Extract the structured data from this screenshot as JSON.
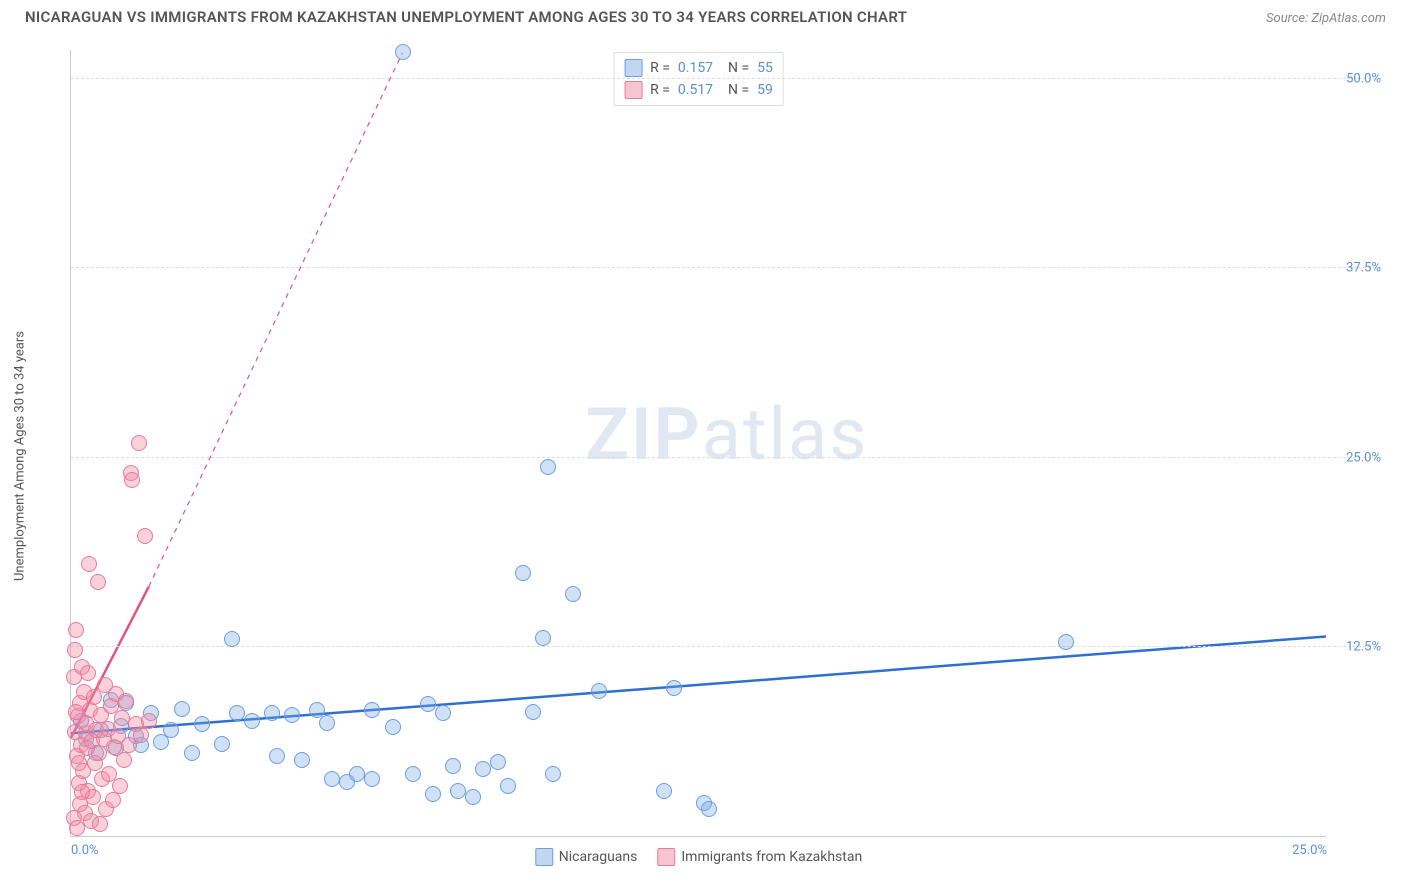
{
  "title": "NICARAGUAN VS IMMIGRANTS FROM KAZAKHSTAN UNEMPLOYMENT AMONG AGES 30 TO 34 YEARS CORRELATION CHART",
  "source": "Source: ZipAtlas.com",
  "ylabel": "Unemployment Among Ages 30 to 34 years",
  "watermark": "ZIPatlas",
  "chart": {
    "type": "scatter",
    "xlim": [
      0,
      25
    ],
    "ylim": [
      0,
      52
    ],
    "xticks": [
      {
        "v": 0,
        "label": "0.0%"
      },
      {
        "v": 25,
        "label": "25.0%"
      }
    ],
    "yticks": [
      {
        "v": 12.5,
        "label": "12.5%"
      },
      {
        "v": 25.0,
        "label": "25.0%"
      },
      {
        "v": 37.5,
        "label": "37.5%"
      },
      {
        "v": 50.0,
        "label": "50.0%"
      }
    ],
    "grid_color": "#dddddd",
    "background_color": "#ffffff",
    "marker_radius": 8,
    "marker_stroke_width": 1.5,
    "series": [
      {
        "name": "Nicaraguans",
        "fill": "rgba(120,165,225,0.35)",
        "stroke": "#6a9fe0",
        "trend": {
          "x1": 0,
          "y1": 6.8,
          "x2": 25,
          "y2": 13.2,
          "color": "#2f6fd0",
          "width": 2.5,
          "dash": "none",
          "extend_dash_to": null
        },
        "R": "0.157",
        "N": "55",
        "points": [
          [
            0.3,
            6.4
          ],
          [
            0.6,
            7.0
          ],
          [
            1.0,
            7.3
          ],
          [
            1.3,
            6.6
          ],
          [
            1.6,
            8.1
          ],
          [
            2.0,
            7.0
          ],
          [
            2.2,
            8.4
          ],
          [
            2.6,
            7.4
          ],
          [
            3.0,
            6.1
          ],
          [
            3.2,
            13.0
          ],
          [
            3.3,
            8.1
          ],
          [
            3.6,
            7.6
          ],
          [
            4.0,
            8.1
          ],
          [
            4.1,
            5.3
          ],
          [
            4.4,
            8.0
          ],
          [
            4.6,
            5.0
          ],
          [
            4.9,
            8.3
          ],
          [
            5.1,
            7.5
          ],
          [
            5.2,
            3.8
          ],
          [
            5.5,
            3.6
          ],
          [
            5.7,
            4.1
          ],
          [
            6.0,
            3.8
          ],
          [
            6.0,
            8.3
          ],
          [
            6.4,
            7.2
          ],
          [
            6.6,
            51.8
          ],
          [
            6.8,
            4.1
          ],
          [
            7.1,
            8.7
          ],
          [
            7.2,
            2.8
          ],
          [
            7.4,
            8.1
          ],
          [
            7.6,
            4.6
          ],
          [
            7.7,
            3.0
          ],
          [
            8.0,
            2.6
          ],
          [
            8.2,
            4.4
          ],
          [
            8.5,
            4.9
          ],
          [
            8.7,
            3.3
          ],
          [
            9.0,
            17.4
          ],
          [
            9.2,
            8.2
          ],
          [
            9.4,
            13.1
          ],
          [
            9.5,
            24.4
          ],
          [
            9.6,
            4.1
          ],
          [
            10.0,
            16.0
          ],
          [
            10.5,
            9.6
          ],
          [
            11.8,
            3.0
          ],
          [
            12.0,
            9.8
          ],
          [
            12.6,
            2.2
          ],
          [
            12.7,
            1.8
          ],
          [
            19.8,
            12.8
          ],
          [
            1.8,
            6.2
          ],
          [
            2.4,
            5.5
          ],
          [
            0.9,
            5.8
          ],
          [
            1.1,
            8.8
          ],
          [
            0.5,
            5.5
          ],
          [
            0.2,
            7.6
          ],
          [
            0.8,
            9.0
          ],
          [
            1.4,
            6.0
          ]
        ]
      },
      {
        "name": "Immigrants from Kazakhstan",
        "fill": "rgba(240,140,165,0.40)",
        "stroke": "#e77a9a",
        "trend": {
          "x1": 0,
          "y1": 6.5,
          "x2": 1.55,
          "y2": 16.5,
          "color": "#e0567f",
          "width": 2.5,
          "dash": "none",
          "extend_dash_to": [
            6.6,
            51.8
          ]
        },
        "R": "0.517",
        "N": "59",
        "points": [
          [
            0.05,
            10.5
          ],
          [
            0.08,
            12.3
          ],
          [
            0.1,
            13.6
          ],
          [
            0.12,
            5.3
          ],
          [
            0.14,
            7.9
          ],
          [
            0.15,
            3.5
          ],
          [
            0.17,
            2.1
          ],
          [
            0.18,
            8.8
          ],
          [
            0.2,
            6.0
          ],
          [
            0.22,
            11.2
          ],
          [
            0.24,
            4.3
          ],
          [
            0.25,
            9.5
          ],
          [
            0.27,
            1.5
          ],
          [
            0.29,
            6.8
          ],
          [
            0.3,
            7.5
          ],
          [
            0.32,
            5.8
          ],
          [
            0.34,
            3.0
          ],
          [
            0.36,
            18.0
          ],
          [
            0.38,
            8.3
          ],
          [
            0.4,
            1.0
          ],
          [
            0.42,
            6.3
          ],
          [
            0.44,
            2.6
          ],
          [
            0.46,
            9.2
          ],
          [
            0.48,
            4.8
          ],
          [
            0.5,
            7.0
          ],
          [
            0.53,
            16.8
          ],
          [
            0.55,
            5.5
          ],
          [
            0.58,
            0.8
          ],
          [
            0.6,
            8.0
          ],
          [
            0.62,
            3.8
          ],
          [
            0.65,
            6.4
          ],
          [
            0.68,
            10.0
          ],
          [
            0.7,
            1.8
          ],
          [
            0.73,
            7.1
          ],
          [
            0.76,
            4.1
          ],
          [
            0.8,
            8.6
          ],
          [
            0.83,
            2.4
          ],
          [
            0.86,
            5.9
          ],
          [
            0.9,
            9.4
          ],
          [
            0.94,
            6.6
          ],
          [
            0.98,
            3.3
          ],
          [
            1.02,
            7.8
          ],
          [
            1.06,
            5.0
          ],
          [
            1.1,
            8.9
          ],
          [
            1.15,
            6.0
          ],
          [
            1.2,
            24.0
          ],
          [
            1.22,
            23.5
          ],
          [
            1.3,
            7.4
          ],
          [
            1.35,
            26.0
          ],
          [
            1.4,
            6.7
          ],
          [
            1.48,
            19.8
          ],
          [
            1.55,
            7.6
          ],
          [
            0.06,
            1.2
          ],
          [
            0.11,
            0.5
          ],
          [
            0.16,
            4.8
          ],
          [
            0.21,
            2.9
          ],
          [
            0.33,
            10.8
          ],
          [
            0.07,
            6.9
          ],
          [
            0.09,
            8.2
          ]
        ]
      }
    ],
    "legend_top": {
      "swatch_blue_fill": "rgba(120,165,225,0.45)",
      "swatch_blue_stroke": "#6a9fe0",
      "swatch_pink_fill": "rgba(240,140,165,0.50)",
      "swatch_pink_stroke": "#e77a9a"
    },
    "legend_bottom": [
      {
        "label": "Nicaraguans",
        "fill": "rgba(120,165,225,0.45)",
        "stroke": "#6a9fe0"
      },
      {
        "label": "Immigrants from Kazakhstan",
        "fill": "rgba(240,140,165,0.50)",
        "stroke": "#e77a9a"
      }
    ]
  }
}
